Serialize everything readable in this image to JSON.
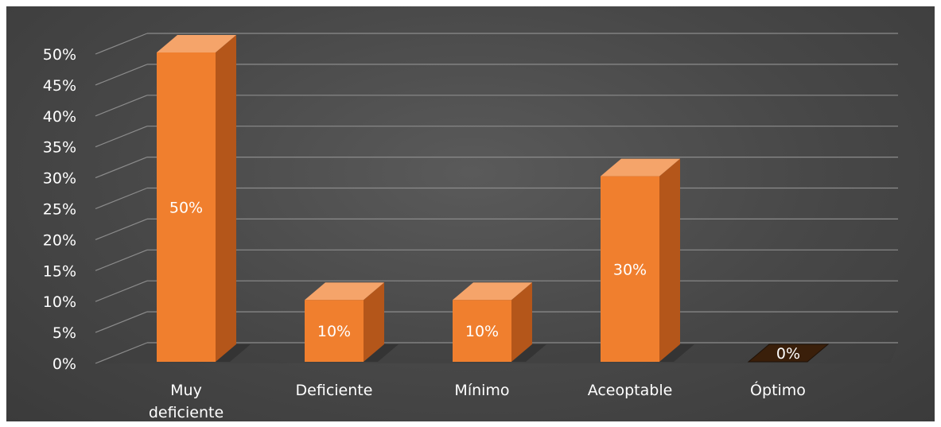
{
  "chart_data": {
    "type": "bar",
    "categories": [
      "Muy deficiente",
      "Deficiente",
      "Mínimo",
      "Aceoptable",
      "Óptimo"
    ],
    "values": [
      50,
      10,
      10,
      30,
      0
    ],
    "data_labels": [
      "50%",
      "10%",
      "10%",
      "30%",
      "0%"
    ],
    "y_ticks": [
      "0%",
      "5%",
      "10%",
      "15%",
      "20%",
      "25%",
      "30%",
      "35%",
      "40%",
      "45%",
      "50%"
    ],
    "ylim": [
      0,
      50
    ],
    "grid": true,
    "style": "3d-column",
    "colors": {
      "bar_front": "#f07f2e",
      "bar_side": "#b4561a",
      "bar_top": "#f5a46a",
      "background": "#474747",
      "gridline": "#8c8c8c",
      "text": "#ffffff"
    }
  }
}
